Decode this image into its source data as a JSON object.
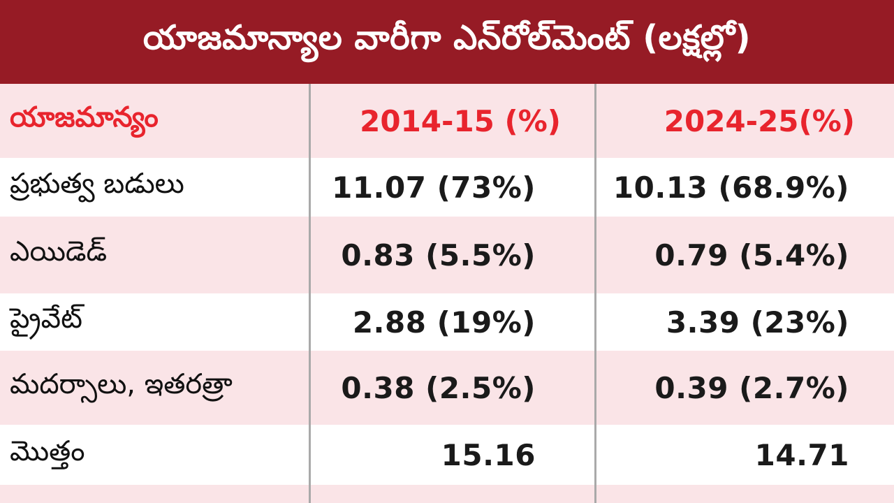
{
  "title": "యాజమాన్యాల వారీగా ఎన్‌రోల్‌మెంట్ (లక్షల్లో)",
  "header": {
    "col1": "యాజమాన్యం",
    "col2": "2014-15 (%)",
    "col3": "2024-25(%)"
  },
  "rows": [
    {
      "label": "ప్రభుత్వ బడులు",
      "v2014": "11.07 (73%)",
      "v2024": "10.13 (68.9%)"
    },
    {
      "label": "ఎయిడెడ్",
      "v2014": "0.83 (5.5%)",
      "v2024": "0.79 (5.4%)"
    },
    {
      "label": "ప్రైవేట్",
      "v2014": "2.88 (19%)",
      "v2024": "3.39 (23%)"
    },
    {
      "label": "మదర్సాలు, ఇతరత్రా",
      "v2014": "0.38 (2.5%)",
      "v2024": "0.39 (2.7%)"
    },
    {
      "label": "మొత్తం",
      "v2014": "15.16",
      "v2024": "14.71"
    }
  ],
  "colors": {
    "title_bg": "#961b25",
    "header_text": "#e8242d",
    "row_pink": "#fae4e7"
  }
}
